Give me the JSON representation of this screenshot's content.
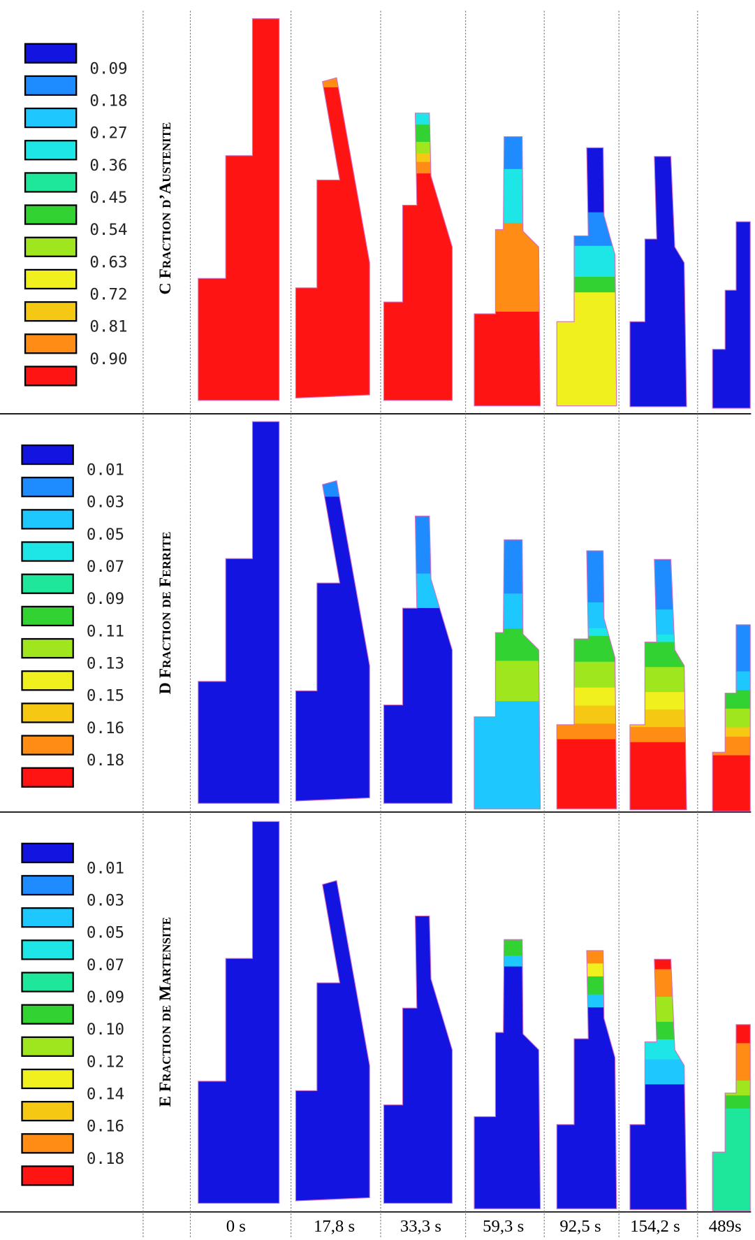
{
  "rows": [
    {
      "title": "C Fraction d’Austenite",
      "legend": [
        "0.09",
        "0.18",
        "0.27",
        "0.36",
        "0.45",
        "0.54",
        "0.63",
        "0.72",
        "0.81",
        "0.90"
      ]
    },
    {
      "title": "D Fraction de Ferrite",
      "legend": [
        "0.01",
        "0.03",
        "0.05",
        "0.07",
        "0.09",
        "0.11",
        "0.13",
        "0.15",
        "0.16",
        "0.18"
      ]
    },
    {
      "title": "E Fraction de Martensite",
      "legend": [
        "0.01",
        "0.03",
        "0.05",
        "0.07",
        "0.09",
        "0.10",
        "0.12",
        "0.14",
        "0.16",
        "0.18"
      ]
    }
  ],
  "time_labels": [
    "0 s",
    "17,8 s",
    "33,3 s",
    "59,3 s",
    "92,5 s",
    "154,2 s",
    "489s"
  ]
}
